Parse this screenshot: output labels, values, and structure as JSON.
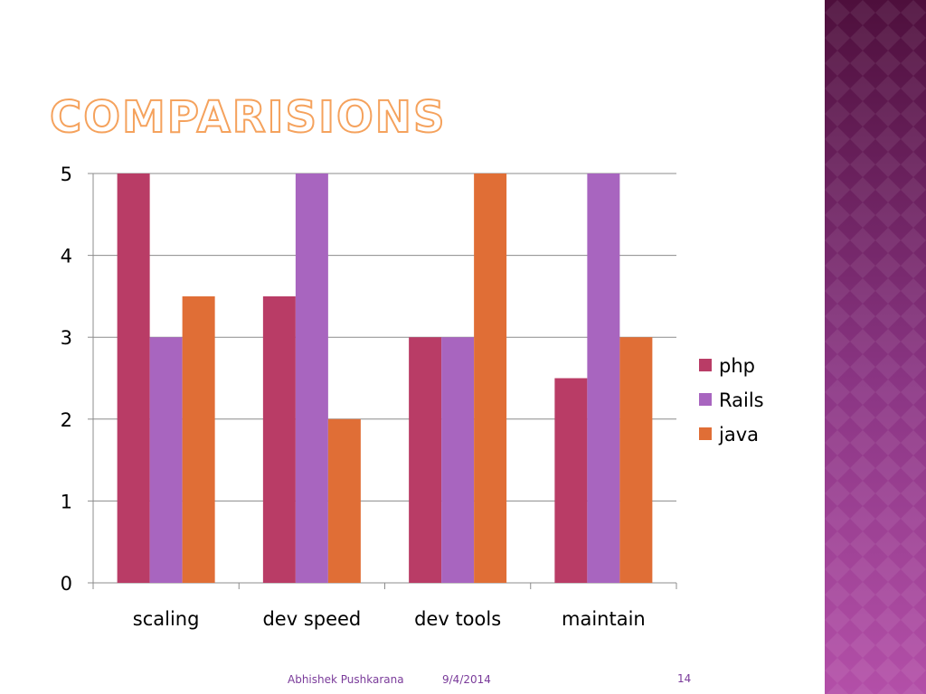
{
  "slide": {
    "title": "COMPARISIONS",
    "footer_author": "Abhishek Pushkarana",
    "footer_date": "9/4/2014",
    "page_number": "14"
  },
  "colors": {
    "series": [
      "#b93c66",
      "#a865bf",
      "#e06e36"
    ],
    "gridline": "#8c8c8c",
    "side_panel_top": "#4e0f3c",
    "side_panel_bottom": "#b34fa8"
  },
  "chart_data": {
    "type": "bar",
    "categories": [
      "scaling",
      "dev speed",
      "dev tools",
      "maintain"
    ],
    "series": [
      {
        "name": "php",
        "values": [
          5,
          3.5,
          3,
          2.5
        ]
      },
      {
        "name": "Rails",
        "values": [
          3,
          5,
          3,
          5
        ]
      },
      {
        "name": "java",
        "values": [
          3.5,
          2,
          5,
          3
        ]
      }
    ],
    "ylim": [
      0,
      5
    ],
    "yticks": [
      0,
      1,
      2,
      3,
      4,
      5
    ],
    "grid": true,
    "legend": "right"
  }
}
